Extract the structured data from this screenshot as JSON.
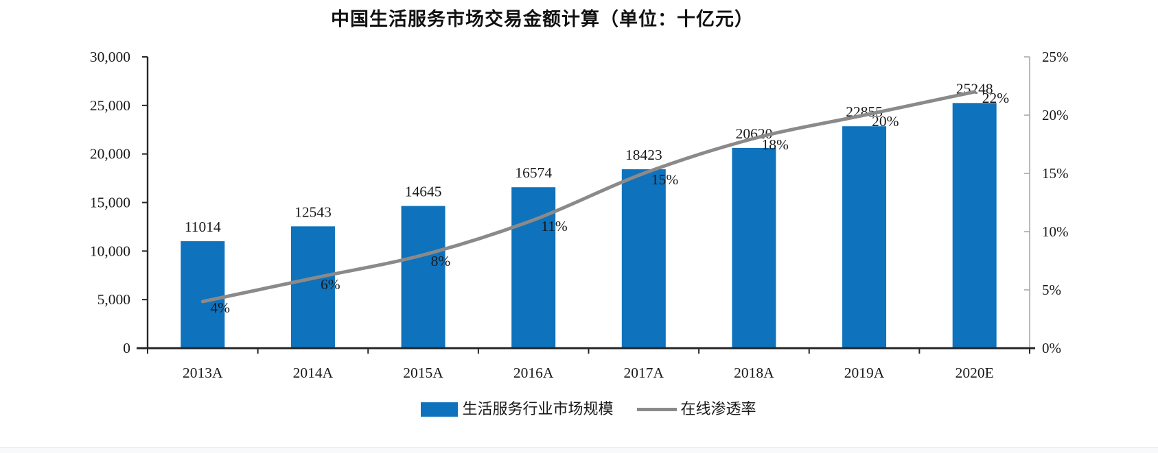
{
  "chart_data": {
    "type": "combo-bar-line",
    "title": "中国生活服务市场交易金额计算（单位：十亿元）",
    "categories": [
      "2013A",
      "2014A",
      "2015A",
      "2016A",
      "2017A",
      "2018A",
      "2019A",
      "2020E"
    ],
    "series": [
      {
        "name": "生活服务行业市场规模",
        "type": "bar",
        "axis": "left",
        "color": "#0e72bc",
        "values": [
          11014,
          12543,
          14645,
          16574,
          18423,
          20620,
          22855,
          25248
        ],
        "labels": [
          "11014",
          "12543",
          "14645",
          "16574",
          "18423",
          "20620",
          "22855",
          "25248"
        ]
      },
      {
        "name": "在线渗透率",
        "type": "line",
        "axis": "right",
        "color": "#8a8a8a",
        "values": [
          0.04,
          0.06,
          0.08,
          0.11,
          0.15,
          0.18,
          0.2,
          0.22
        ],
        "labels": [
          "4%",
          "6%",
          "8%",
          "11%",
          "15%",
          "18%",
          "20%",
          "22%"
        ]
      }
    ],
    "left_axis": {
      "min": 0,
      "max": 30000,
      "step": 5000,
      "tick_labels": [
        "0",
        "5,000",
        "10,000",
        "15,000",
        "20,000",
        "25,000",
        "30,000"
      ]
    },
    "right_axis": {
      "min": 0,
      "max": 0.25,
      "step": 0.05,
      "tick_labels": [
        "0%",
        "5%",
        "10%",
        "15%",
        "20%",
        "25%"
      ]
    },
    "grid": false,
    "legend_position": "bottom",
    "legend": [
      {
        "label": "生活服务行业市场规模",
        "swatch": "bar"
      },
      {
        "label": "在线渗透率",
        "swatch": "line"
      }
    ],
    "colors": {
      "bar": "#0e72bc",
      "line": "#8a8a8a",
      "axis_dark": "#262626",
      "axis_light": "#a8a8a8",
      "text": "#1a1a1a"
    }
  }
}
